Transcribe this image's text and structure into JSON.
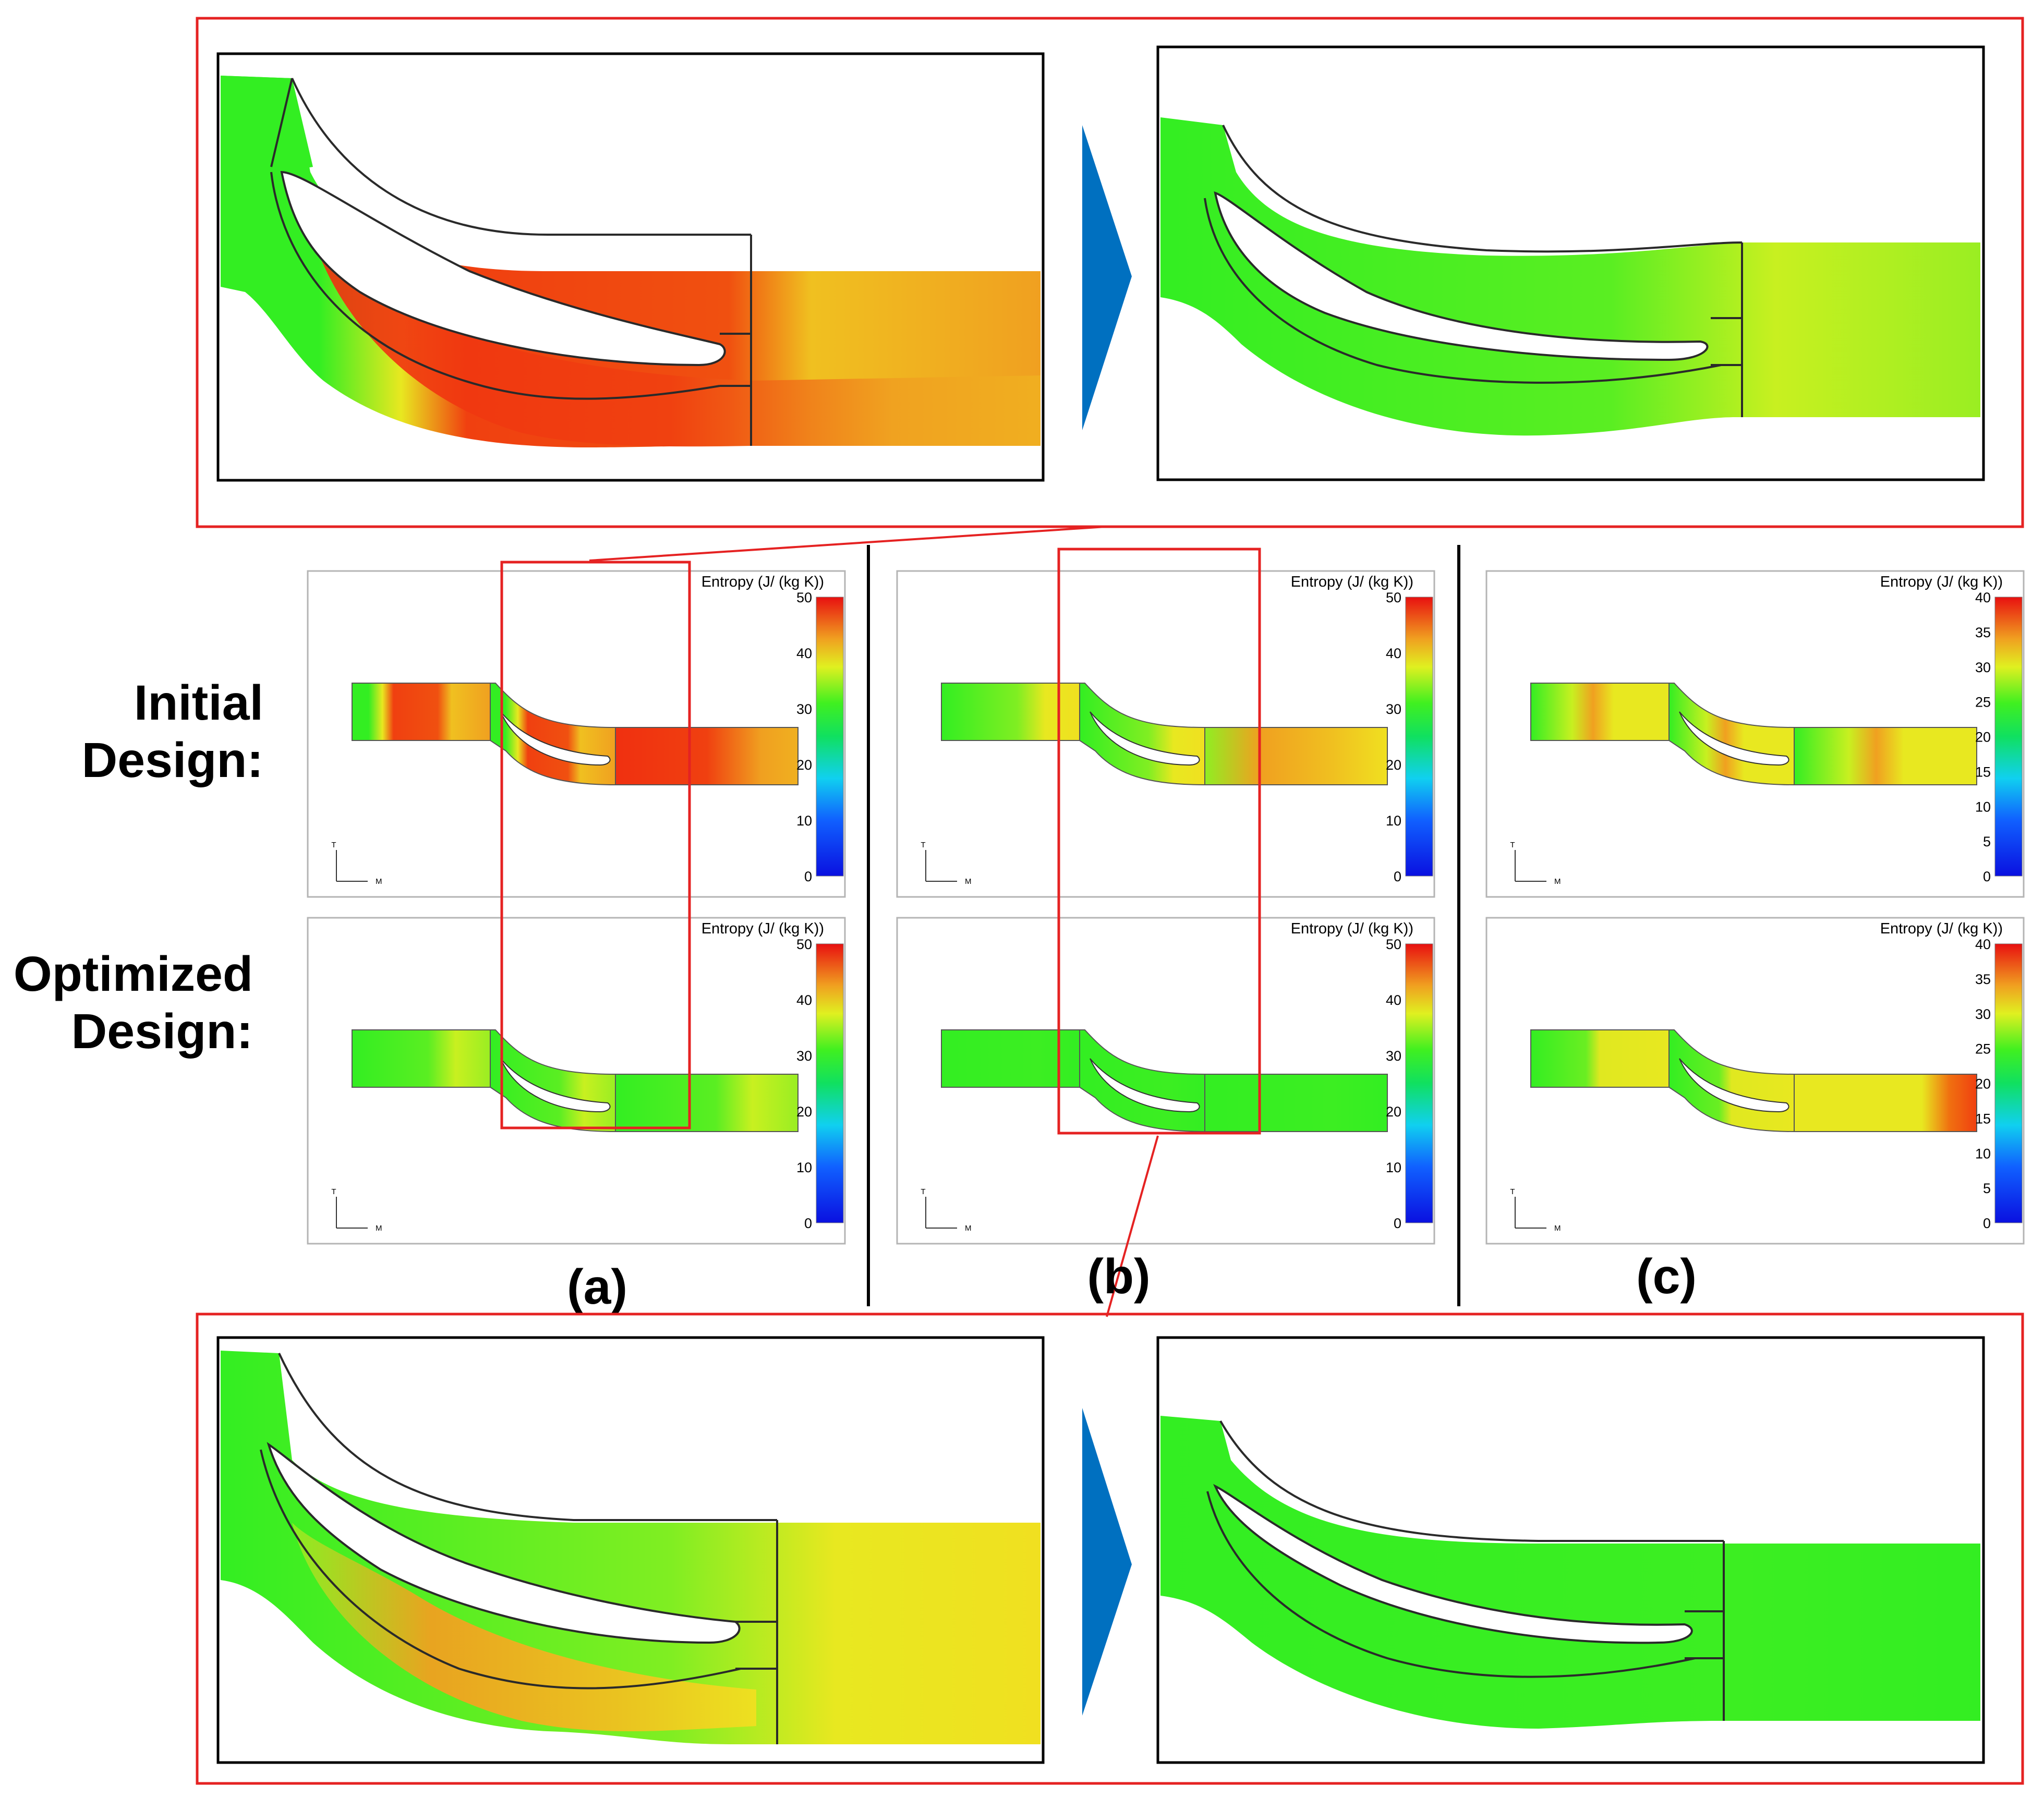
{
  "row_labels": {
    "initial_line1": "Initial",
    "initial_line2": "Design:",
    "optimized_line1": "Optimized",
    "optimized_line2": "Design:"
  },
  "case_labels": [
    "(a)",
    "(b)",
    "(c)"
  ],
  "colorbar": {
    "title": "Entropy (J/ (kg K))",
    "ticks_50": [
      "50",
      "40",
      "30",
      "20",
      "10",
      "0"
    ],
    "ticks_40": [
      "40",
      "35",
      "30",
      "25",
      "20",
      "15",
      "10",
      "5",
      "0"
    ]
  },
  "axes_triad": {
    "vertical": "T",
    "horizontal": "M"
  },
  "colors": {
    "highlight_frame": "#e52222",
    "arrow": "#0070c0",
    "low_entropy": "#22f022",
    "mid_entropy": "#f0f020",
    "high_entropy": "#f03010"
  }
}
